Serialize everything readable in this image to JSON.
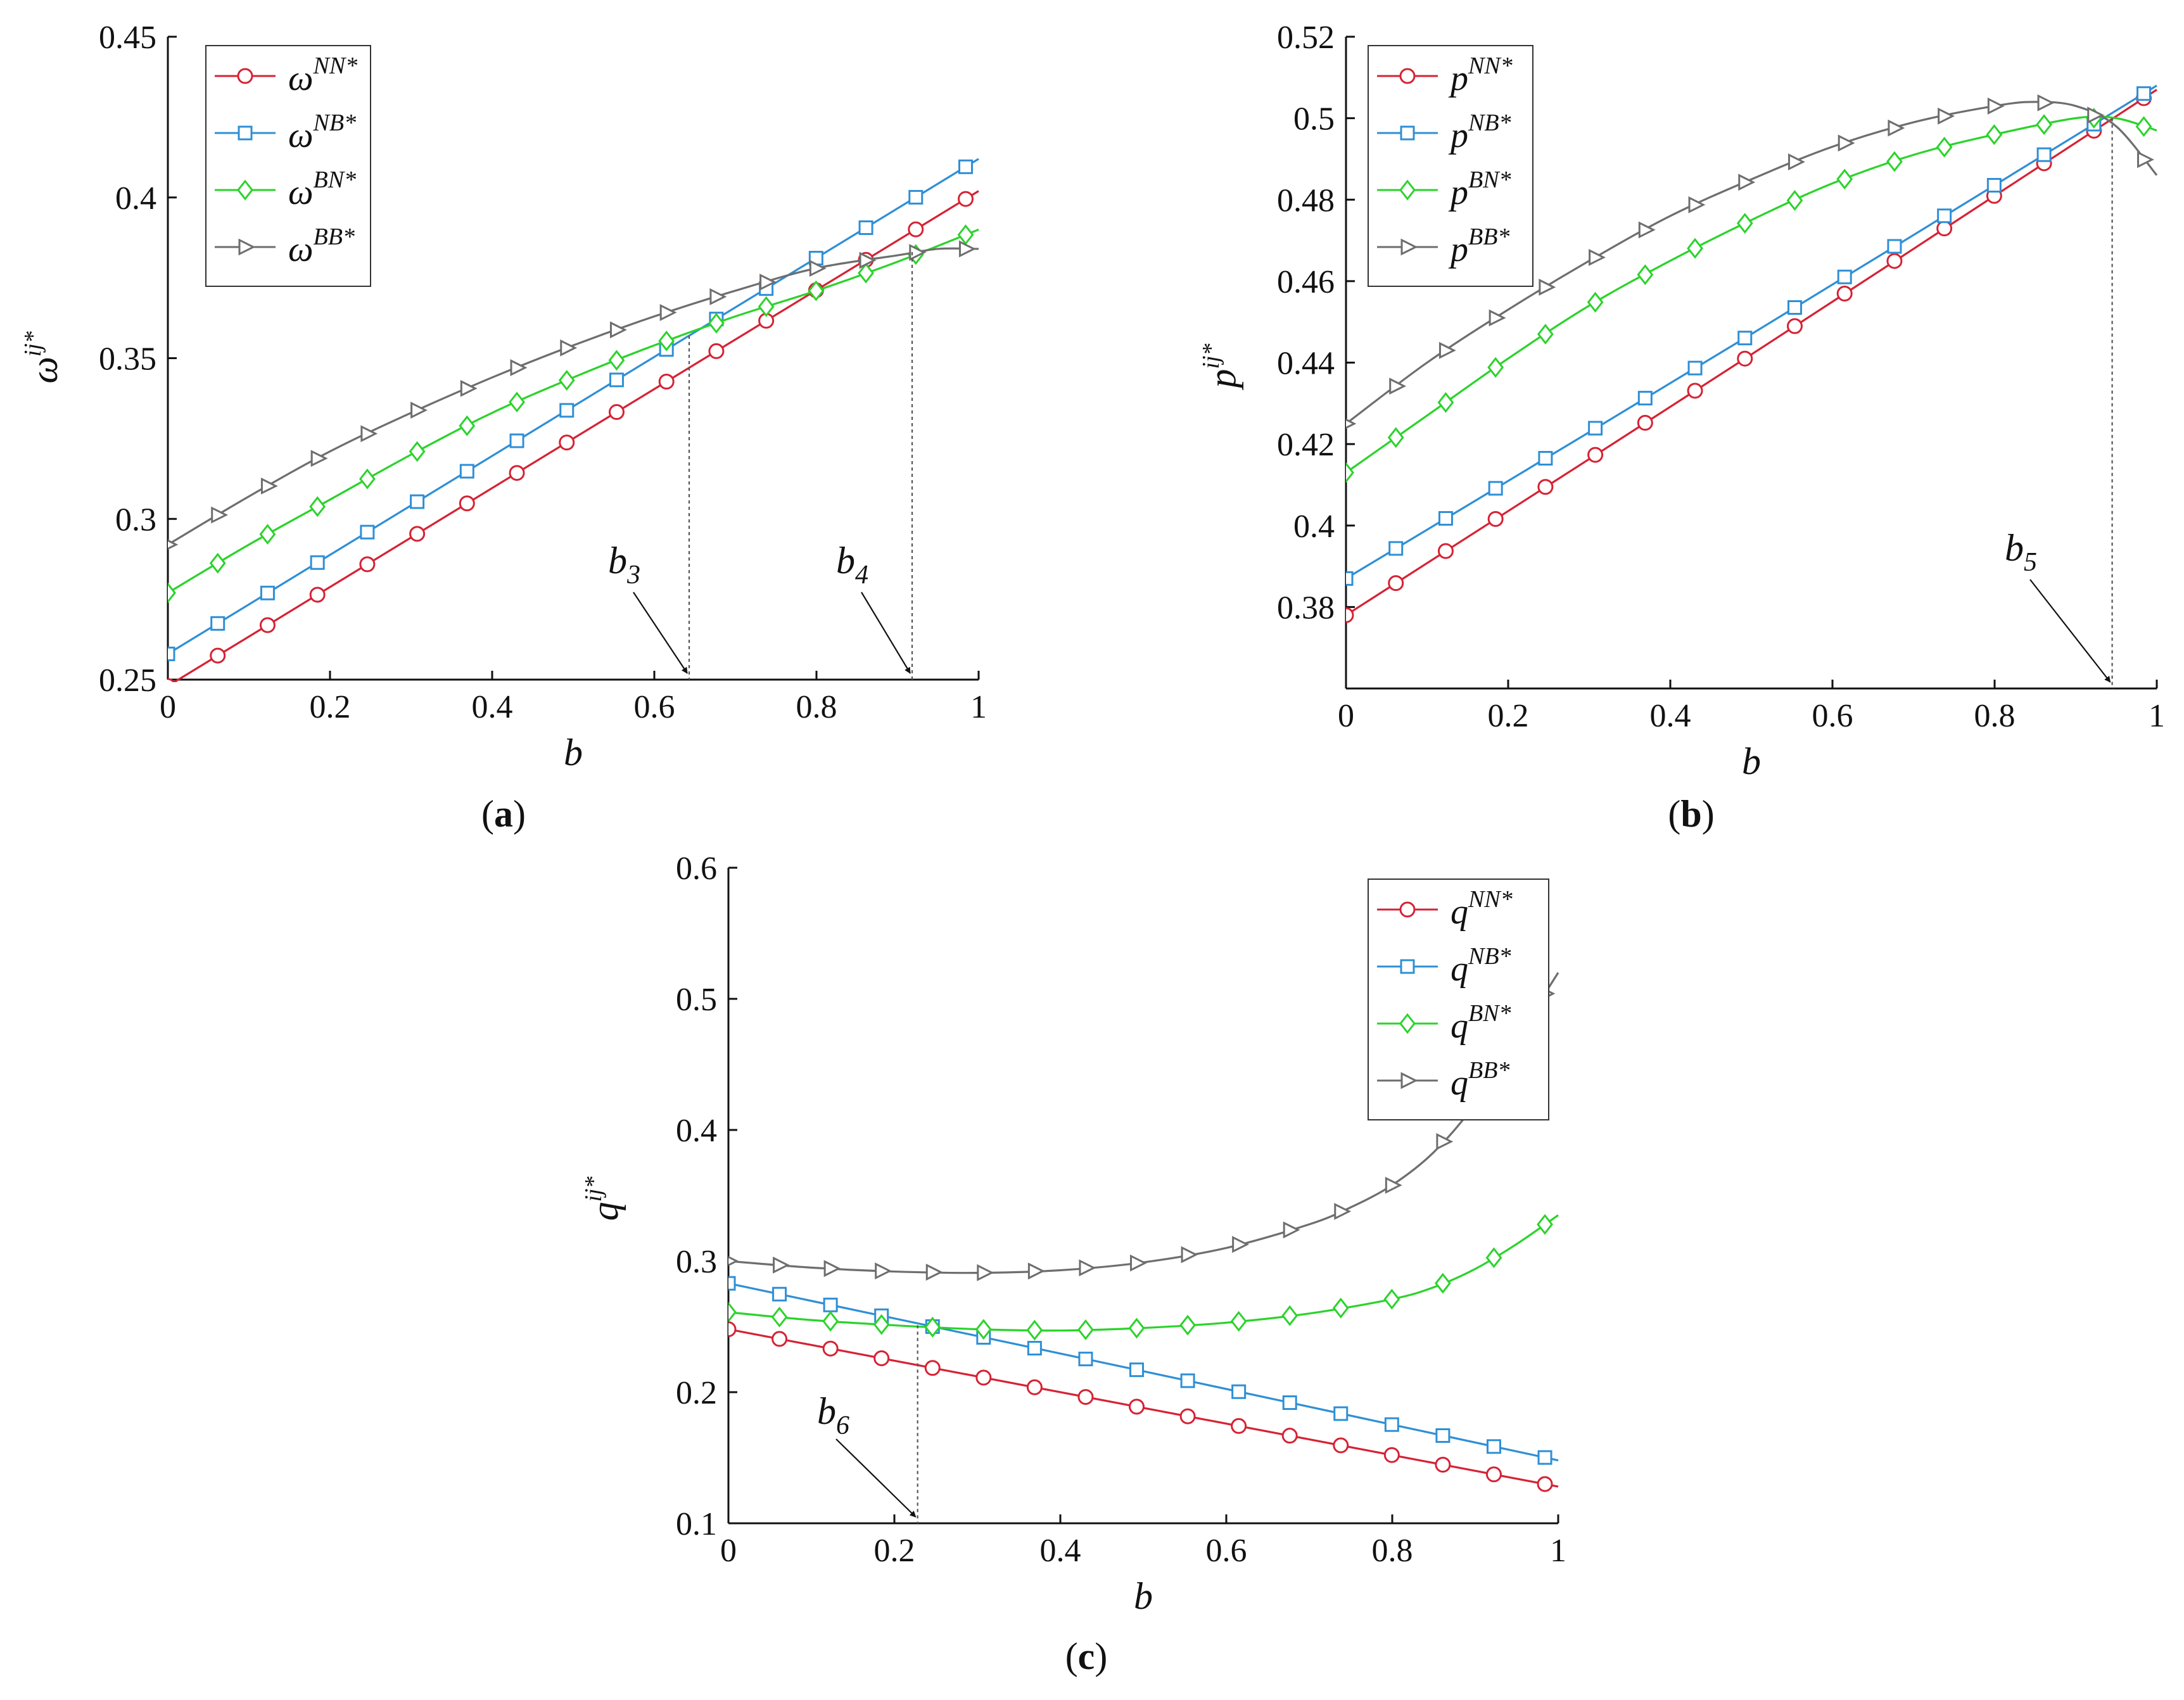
{
  "colors": {
    "NN": "#d62234",
    "NB": "#2f8fd6",
    "BN": "#2bd32b",
    "BB": "#6e6e6e"
  },
  "chart_data": [
    {
      "type": "line",
      "panel": "a",
      "caption_letter": "a",
      "xlabel": "b",
      "ylabel": {
        "base": "ω",
        "sup": "ij*"
      },
      "xlim": [
        0,
        1
      ],
      "ylim": [
        0.25,
        0.45
      ],
      "xticks": [
        "0",
        "0.2",
        "0.4",
        "0.6",
        "0.8",
        "1"
      ],
      "yticks": [
        "0.25",
        "0.3",
        "0.35",
        "0.4",
        "0.45"
      ],
      "series": [
        {
          "key": "NN",
          "name_base": "ω",
          "name_sup": "NN*",
          "marker": "circle",
          "x": [
            0,
            0.5,
            1
          ],
          "y": [
            0.248,
            0.325,
            0.402
          ]
        },
        {
          "key": "NB",
          "name_base": "ω",
          "name_sup": "NB*",
          "marker": "square",
          "x": [
            0,
            0.5,
            1
          ],
          "y": [
            0.258,
            0.335,
            0.412
          ]
        },
        {
          "key": "BN",
          "name_base": "ω",
          "name_sup": "BN*",
          "marker": "diamond",
          "x": [
            0,
            0.1,
            0.2,
            0.3,
            0.4,
            0.5,
            0.6,
            0.7,
            0.8,
            0.9,
            1.0
          ],
          "y": [
            0.277,
            0.292,
            0.306,
            0.32,
            0.333,
            0.344,
            0.354,
            0.363,
            0.371,
            0.38,
            0.39
          ]
        },
        {
          "key": "BB",
          "name_base": "ω",
          "name_sup": "BB*",
          "marker": "triangle-right",
          "x": [
            0,
            0.1,
            0.2,
            0.3,
            0.4,
            0.5,
            0.6,
            0.7,
            0.8,
            0.9,
            0.95,
            1.0
          ],
          "y": [
            0.292,
            0.307,
            0.321,
            0.333,
            0.344,
            0.354,
            0.363,
            0.371,
            0.378,
            0.382,
            0.384,
            0.384
          ]
        }
      ],
      "annotations": [
        {
          "base": "b",
          "sub": "3",
          "x": 0.643
        },
        {
          "base": "b",
          "sub": "4",
          "x": 0.918
        }
      ],
      "legend": "top-left"
    },
    {
      "type": "line",
      "panel": "b",
      "caption_letter": "b",
      "xlabel": "b",
      "ylabel": {
        "base": "p",
        "sup": "ij*"
      },
      "xlim": [
        0,
        1
      ],
      "ylim": [
        0.36,
        0.52
      ],
      "xticks": [
        "0",
        "0.2",
        "0.4",
        "0.6",
        "0.8",
        "1"
      ],
      "yticks": [
        "0.38",
        "0.4",
        "0.42",
        "0.44",
        "0.46",
        "0.48",
        "0.5",
        "0.52"
      ],
      "series": [
        {
          "key": "NN",
          "name_base": "p",
          "name_sup": "NN*",
          "marker": "circle",
          "x": [
            0,
            0.5,
            1
          ],
          "y": [
            0.378,
            0.442,
            0.507
          ]
        },
        {
          "key": "NB",
          "name_base": "p",
          "name_sup": "NB*",
          "marker": "square",
          "x": [
            0,
            0.5,
            1
          ],
          "y": [
            0.387,
            0.447,
            0.508
          ]
        },
        {
          "key": "BN",
          "name_base": "p",
          "name_sup": "BN*",
          "marker": "diamond",
          "x": [
            0,
            0.1,
            0.2,
            0.3,
            0.4,
            0.5,
            0.6,
            0.7,
            0.8,
            0.9,
            0.95,
            1.0
          ],
          "y": [
            0.413,
            0.427,
            0.441,
            0.454,
            0.465,
            0.475,
            0.484,
            0.491,
            0.496,
            0.5,
            0.5,
            0.497
          ]
        },
        {
          "key": "BB",
          "name_base": "p",
          "name_sup": "BB*",
          "marker": "triangle-right",
          "x": [
            0,
            0.1,
            0.2,
            0.3,
            0.4,
            0.5,
            0.6,
            0.7,
            0.8,
            0.85,
            0.9,
            0.95,
            1.0
          ],
          "y": [
            0.425,
            0.44,
            0.453,
            0.465,
            0.476,
            0.485,
            0.493,
            0.499,
            0.503,
            0.504,
            0.503,
            0.498,
            0.486
          ]
        }
      ],
      "annotations": [
        {
          "base": "b",
          "sub": "5",
          "x": 0.945
        }
      ],
      "legend": "top-left"
    },
    {
      "type": "line",
      "panel": "c",
      "caption_letter": "c",
      "xlabel": "b",
      "ylabel": {
        "base": "q",
        "sup": "ij*"
      },
      "xlim": [
        0,
        1
      ],
      "ylim": [
        0.1,
        0.6
      ],
      "xticks": [
        "0",
        "0.2",
        "0.4",
        "0.6",
        "0.8",
        "1"
      ],
      "yticks": [
        "0.1",
        "0.2",
        "0.3",
        "0.4",
        "0.5",
        "0.6"
      ],
      "series": [
        {
          "key": "NN",
          "name_base": "q",
          "name_sup": "NN*",
          "marker": "circle",
          "x": [
            0,
            0.5,
            1
          ],
          "y": [
            0.248,
            0.188,
            0.128
          ]
        },
        {
          "key": "NB",
          "name_base": "q",
          "name_sup": "NB*",
          "marker": "square",
          "x": [
            0,
            0.5,
            1
          ],
          "y": [
            0.283,
            0.216,
            0.148
          ]
        },
        {
          "key": "BN",
          "name_base": "q",
          "name_sup": "BN*",
          "marker": "diamond",
          "x": [
            0,
            0.1,
            0.2,
            0.3,
            0.4,
            0.5,
            0.6,
            0.7,
            0.8,
            0.85,
            0.9,
            0.95,
            1.0
          ],
          "y": [
            0.261,
            0.255,
            0.251,
            0.248,
            0.247,
            0.249,
            0.253,
            0.26,
            0.271,
            0.28,
            0.294,
            0.313,
            0.335
          ]
        },
        {
          "key": "BB",
          "name_base": "q",
          "name_sup": "BB*",
          "marker": "triangle-right",
          "x": [
            0,
            0.1,
            0.2,
            0.3,
            0.4,
            0.5,
            0.6,
            0.7,
            0.75,
            0.8,
            0.85,
            0.9,
            0.95,
            1.0
          ],
          "y": [
            0.3,
            0.295,
            0.292,
            0.291,
            0.293,
            0.299,
            0.31,
            0.328,
            0.341,
            0.358,
            0.383,
            0.42,
            0.47,
            0.52
          ]
        }
      ],
      "annotations": [
        {
          "base": "b",
          "sub": "6",
          "x": 0.228
        }
      ],
      "legend": "top-right"
    }
  ]
}
